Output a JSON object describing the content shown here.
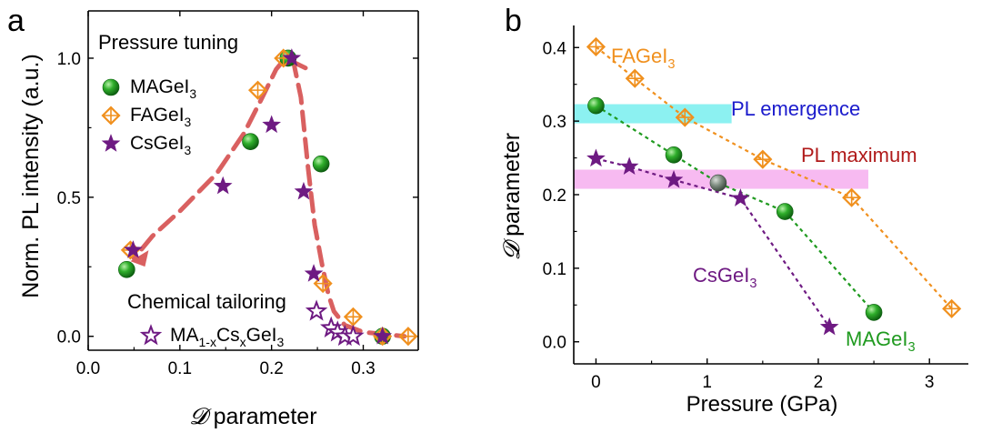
{
  "colors": {
    "green": "#1f9a1f",
    "orange": "#f0901e",
    "purple": "#6e1a82",
    "fit": "#d96060",
    "emergence_band": "#7ff0ef",
    "maximum_band": "#f6b2ef",
    "emergence_text": "#1a1acc",
    "maximum_text": "#b01a1a"
  },
  "chart_data": [
    {
      "type": "scatter",
      "panel_label": "a",
      "xlabel_symbol": "𝓓",
      "xlabel_rest": " parameter",
      "ylabel": "Norm. PL intensity (a.u.)",
      "xlim": [
        0.0,
        0.36
      ],
      "ylim": [
        -0.05,
        1.17
      ],
      "xticks": [
        0.0,
        0.1,
        0.2,
        0.3
      ],
      "xtick_labels": [
        "0.0",
        "0.1",
        "0.2",
        "0.3"
      ],
      "yticks": [
        0.0,
        0.5,
        1.0
      ],
      "ytick_labels": [
        "0.0",
        "0.5",
        "1.0"
      ],
      "legend_title": "Pressure tuning",
      "legend_title_2": "Chemical tailoring",
      "series": [
        {
          "name_main": "MAGeI",
          "name_sub": "3",
          "marker": "sphere",
          "color": "green",
          "points": [
            [
              0.042,
              0.24
            ],
            [
              0.177,
              0.7
            ],
            [
              0.218,
              1.0
            ],
            [
              0.254,
              0.62
            ],
            [
              0.321,
              0.0
            ]
          ]
        },
        {
          "name_main": "FAGeI",
          "name_sub": "3",
          "marker": "diamond",
          "color": "orange",
          "points": [
            [
              0.046,
              0.31
            ],
            [
              0.185,
              0.885
            ],
            [
              0.213,
              1.0
            ],
            [
              0.256,
              0.19
            ],
            [
              0.289,
              0.07
            ],
            [
              0.321,
              0.0
            ],
            [
              0.349,
              0.0
            ]
          ]
        },
        {
          "name_main": "CsGeI",
          "name_sub": "3",
          "marker": "star",
          "color": "purple",
          "points": [
            [
              0.049,
              0.31
            ],
            [
              0.147,
              0.54
            ],
            [
              0.2,
              0.76
            ],
            [
              0.222,
              1.0
            ],
            [
              0.235,
              0.52
            ],
            [
              0.246,
              0.225
            ],
            [
              0.321,
              0.0
            ]
          ]
        },
        {
          "name_main": "MA",
          "name_sub": "1-x",
          "name_mid": "Cs",
          "name_sub2": "x",
          "name_tail": "GeI",
          "name_sub3": "3",
          "marker": "open-star",
          "color": "purple",
          "points": [
            [
              0.249,
              0.09
            ],
            [
              0.265,
              0.03
            ],
            [
              0.272,
              0.015
            ],
            [
              0.28,
              0.0
            ],
            [
              0.289,
              0.0
            ]
          ]
        }
      ],
      "fit_curve": [
        [
          0.237,
          0.965
        ],
        [
          0.215,
          1.0
        ],
        [
          0.205,
          0.96
        ],
        [
          0.19,
          0.86
        ],
        [
          0.17,
          0.73
        ],
        [
          0.14,
          0.585
        ],
        [
          0.1,
          0.45
        ],
        [
          0.07,
          0.36
        ],
        [
          0.05,
          0.28
        ]
      ],
      "fit_curve_2": [
        [
          0.223,
          1.0
        ],
        [
          0.232,
          0.86
        ],
        [
          0.24,
          0.6
        ],
        [
          0.247,
          0.4
        ],
        [
          0.255,
          0.26
        ],
        [
          0.262,
          0.15
        ],
        [
          0.268,
          0.09
        ],
        [
          0.28,
          0.04
        ],
        [
          0.3,
          0.015
        ],
        [
          0.33,
          0.005
        ],
        [
          0.345,
          0.0
        ]
      ]
    },
    {
      "type": "line",
      "panel_label": "b",
      "xlabel": "Pressure (GPa)",
      "ylabel_symbol": "𝓓",
      "ylabel_rest": " parameter",
      "xlim": [
        -0.2,
        3.35
      ],
      "ylim": [
        -0.03,
        0.43
      ],
      "xticks": [
        0,
        1,
        2,
        3
      ],
      "xtick_labels": [
        "0",
        "1",
        "2",
        "3"
      ],
      "yticks": [
        0.0,
        0.1,
        0.2,
        0.3,
        0.4
      ],
      "ytick_labels": [
        "0.0",
        "0.1",
        "0.2",
        "0.3",
        "0.4"
      ],
      "bands": [
        {
          "label": "PL emergence",
          "x": [
            -0.2,
            1.22
          ],
          "y": [
            0.297,
            0.323
          ],
          "color": "emergence_band",
          "text_color": "emergence_text"
        },
        {
          "label": "PL maximum",
          "x": [
            -0.2,
            2.45
          ],
          "y": [
            0.208,
            0.234
          ],
          "color": "maximum_band",
          "text_color": "maximum_text"
        }
      ],
      "series": [
        {
          "name_main": "FAGeI",
          "name_sub": "3",
          "marker": "diamond",
          "color": "orange",
          "x": [
            0,
            0.35,
            0.8,
            1.5,
            2.3,
            3.2
          ],
          "y": [
            0.401,
            0.358,
            0.305,
            0.248,
            0.196,
            0.045
          ]
        },
        {
          "name_main": "MAGeI",
          "name_sub": "3",
          "marker": "sphere",
          "color": "green",
          "x": [
            0,
            0.7,
            1.1,
            1.7,
            2.5
          ],
          "y": [
            0.321,
            0.254,
            0.216,
            0.177,
            0.04
          ]
        },
        {
          "name_main": "CsGeI",
          "name_sub": "3",
          "marker": "star",
          "color": "purple",
          "x": [
            0,
            0.3,
            0.7,
            1.3,
            2.1
          ],
          "y": [
            0.249,
            0.238,
            0.22,
            0.195,
            0.02
          ]
        }
      ]
    }
  ]
}
